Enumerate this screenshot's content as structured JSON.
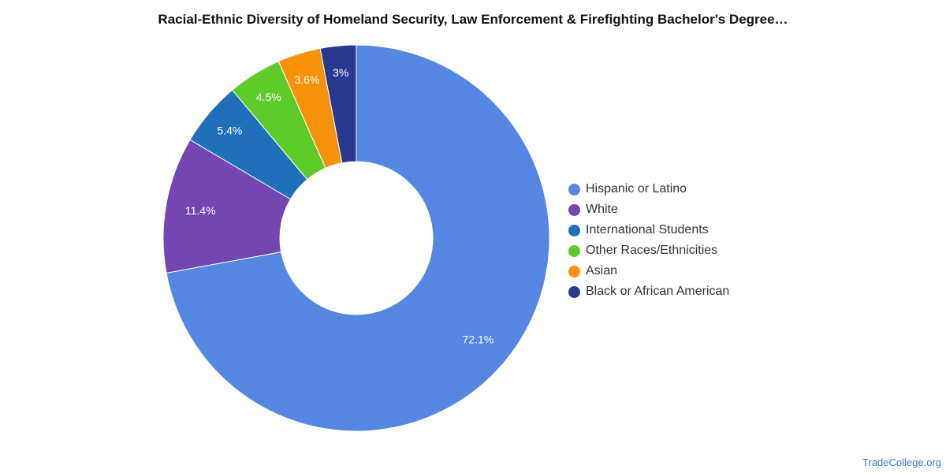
{
  "chart_data": {
    "type": "pie",
    "title": "Racial-Ethnic Diversity of Homeland Security, Law Enforcement & Firefighting Bachelor's Degree…",
    "donut": true,
    "legend_position": "right",
    "slices": [
      {
        "name": "Hispanic or Latino",
        "value": 72.1,
        "label": "72.1%",
        "color": "#5486e2"
      },
      {
        "name": "White",
        "value": 11.4,
        "label": "11.4%",
        "color": "#7346b2"
      },
      {
        "name": "International Students",
        "value": 5.4,
        "label": "5.4%",
        "color": "#1f6fbb"
      },
      {
        "name": "Other Races/Ethnicities",
        "value": 4.5,
        "label": "4.5%",
        "color": "#5ecb2b"
      },
      {
        "name": "Asian",
        "value": 3.6,
        "label": "3.6%",
        "color": "#f7930a"
      },
      {
        "name": "Black or African American",
        "value": 3.0,
        "label": "3%",
        "color": "#2a3990"
      }
    ]
  },
  "source": "TradeCollege.org"
}
